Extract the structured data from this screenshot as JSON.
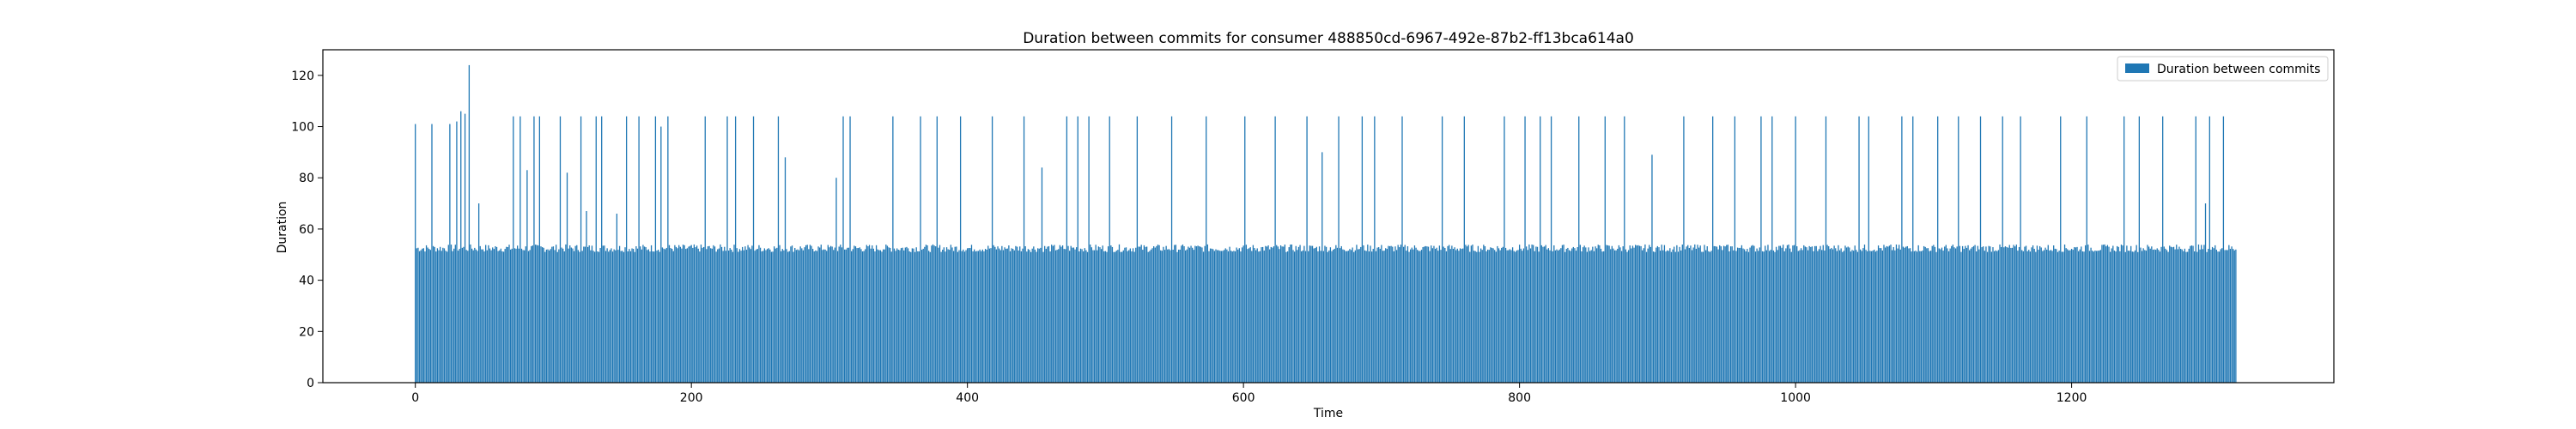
{
  "chart_data": {
    "type": "bar",
    "title": "Duration between commits for consumer 488850cd-6967-492e-87b2-ff13bca614a0",
    "xlabel": "Time",
    "ylabel": "Duration",
    "xlim": [
      -67,
      1390
    ],
    "ylim": [
      0,
      130
    ],
    "x_ticks": [
      0,
      200,
      400,
      600,
      800,
      1000,
      1200
    ],
    "y_ticks": [
      0,
      20,
      40,
      60,
      80,
      100,
      120
    ],
    "grid": false,
    "legend": {
      "position": "top-right",
      "entries": [
        "Duration between commits"
      ]
    },
    "series": [
      {
        "name": "Duration between commits",
        "color": "#1f77b4",
        "baseline": 52,
        "n_points": 1320,
        "note_values": "baseline duration ~51-55 for most points; listed spikes below",
        "spikes": [
          {
            "x": 0,
            "y": 101
          },
          {
            "x": 12,
            "y": 101
          },
          {
            "x": 25,
            "y": 101
          },
          {
            "x": 30,
            "y": 102
          },
          {
            "x": 33,
            "y": 106
          },
          {
            "x": 36,
            "y": 105
          },
          {
            "x": 39,
            "y": 124
          },
          {
            "x": 46,
            "y": 70
          },
          {
            "x": 71,
            "y": 104
          },
          {
            "x": 76,
            "y": 104
          },
          {
            "x": 81,
            "y": 83
          },
          {
            "x": 86,
            "y": 104
          },
          {
            "x": 90,
            "y": 104
          },
          {
            "x": 105,
            "y": 104
          },
          {
            "x": 110,
            "y": 82
          },
          {
            "x": 120,
            "y": 104
          },
          {
            "x": 124,
            "y": 67
          },
          {
            "x": 131,
            "y": 104
          },
          {
            "x": 135,
            "y": 104
          },
          {
            "x": 146,
            "y": 66
          },
          {
            "x": 153,
            "y": 104
          },
          {
            "x": 162,
            "y": 104
          },
          {
            "x": 174,
            "y": 104
          },
          {
            "x": 178,
            "y": 100
          },
          {
            "x": 183,
            "y": 104
          },
          {
            "x": 210,
            "y": 104
          },
          {
            "x": 226,
            "y": 104
          },
          {
            "x": 232,
            "y": 104
          },
          {
            "x": 245,
            "y": 104
          },
          {
            "x": 263,
            "y": 104
          },
          {
            "x": 268,
            "y": 88
          },
          {
            "x": 305,
            "y": 80
          },
          {
            "x": 310,
            "y": 104
          },
          {
            "x": 315,
            "y": 104
          },
          {
            "x": 346,
            "y": 104
          },
          {
            "x": 366,
            "y": 104
          },
          {
            "x": 378,
            "y": 104
          },
          {
            "x": 395,
            "y": 104
          },
          {
            "x": 418,
            "y": 104
          },
          {
            "x": 441,
            "y": 104
          },
          {
            "x": 454,
            "y": 84
          },
          {
            "x": 472,
            "y": 104
          },
          {
            "x": 480,
            "y": 104
          },
          {
            "x": 488,
            "y": 104
          },
          {
            "x": 503,
            "y": 104
          },
          {
            "x": 523,
            "y": 104
          },
          {
            "x": 548,
            "y": 104
          },
          {
            "x": 573,
            "y": 104
          },
          {
            "x": 601,
            "y": 104
          },
          {
            "x": 623,
            "y": 104
          },
          {
            "x": 646,
            "y": 104
          },
          {
            "x": 657,
            "y": 90
          },
          {
            "x": 669,
            "y": 104
          },
          {
            "x": 686,
            "y": 104
          },
          {
            "x": 695,
            "y": 104
          },
          {
            "x": 715,
            "y": 104
          },
          {
            "x": 744,
            "y": 104
          },
          {
            "x": 760,
            "y": 104
          },
          {
            "x": 789,
            "y": 104
          },
          {
            "x": 804,
            "y": 104
          },
          {
            "x": 815,
            "y": 104
          },
          {
            "x": 823,
            "y": 104
          },
          {
            "x": 843,
            "y": 104
          },
          {
            "x": 862,
            "y": 104
          },
          {
            "x": 876,
            "y": 104
          },
          {
            "x": 896,
            "y": 89
          },
          {
            "x": 919,
            "y": 104
          },
          {
            "x": 940,
            "y": 104
          },
          {
            "x": 956,
            "y": 104
          },
          {
            "x": 975,
            "y": 104
          },
          {
            "x": 983,
            "y": 104
          },
          {
            "x": 1000,
            "y": 104
          },
          {
            "x": 1022,
            "y": 104
          },
          {
            "x": 1046,
            "y": 104
          },
          {
            "x": 1053,
            "y": 104
          },
          {
            "x": 1077,
            "y": 104
          },
          {
            "x": 1085,
            "y": 104
          },
          {
            "x": 1103,
            "y": 104
          },
          {
            "x": 1118,
            "y": 104
          },
          {
            "x": 1134,
            "y": 104
          },
          {
            "x": 1150,
            "y": 104
          },
          {
            "x": 1163,
            "y": 104
          },
          {
            "x": 1192,
            "y": 104
          },
          {
            "x": 1211,
            "y": 104
          },
          {
            "x": 1238,
            "y": 104
          },
          {
            "x": 1249,
            "y": 104
          },
          {
            "x": 1266,
            "y": 104
          },
          {
            "x": 1290,
            "y": 104
          },
          {
            "x": 1297,
            "y": 70
          },
          {
            "x": 1300,
            "y": 104
          },
          {
            "x": 1310,
            "y": 104
          }
        ]
      }
    ]
  }
}
